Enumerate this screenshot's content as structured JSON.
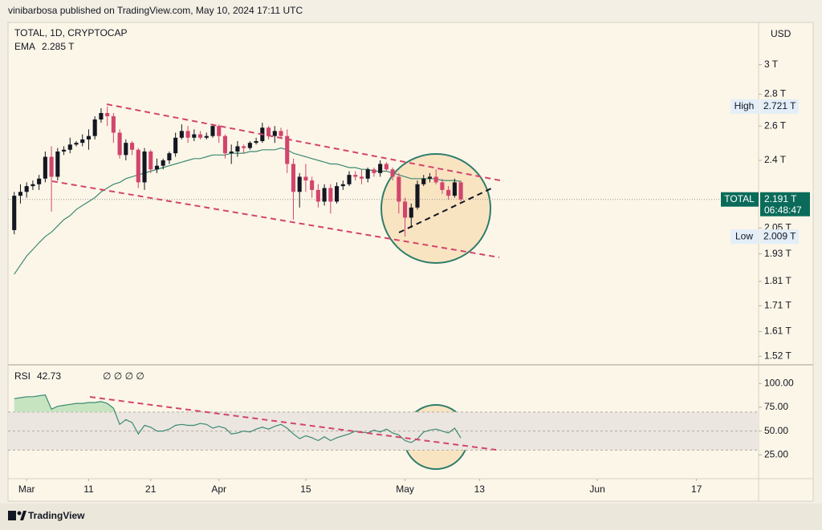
{
  "page": {
    "publisher_line": "vinibarbosa published on TradingView.com, May 10, 2024 17:11 UTC",
    "footer_brand": "TradingView"
  },
  "chart_data": [
    {
      "type": "candlestick",
      "title": "TOTAL, 1D, CRYPTOCAP",
      "currency": "USD",
      "log": true,
      "up_color": "#131722",
      "down_color": "#d2456c",
      "x": [
        "Feb 28",
        "Feb 29",
        "Mar 1",
        "Mar 2",
        "Mar 3",
        "Mar 4",
        "Mar 5",
        "Mar 6",
        "Mar 7",
        "Mar 8",
        "Mar 9",
        "Mar 10",
        "Mar 11",
        "Mar 12",
        "Mar 13",
        "Mar 14",
        "Mar 15",
        "Mar 16",
        "Mar 17",
        "Mar 18",
        "Mar 19",
        "Mar 20",
        "Mar 21",
        "Mar 22",
        "Mar 23",
        "Mar 24",
        "Mar 25",
        "Mar 26",
        "Mar 27",
        "Mar 28",
        "Mar 29",
        "Mar 30",
        "Mar 31",
        "Apr 1",
        "Apr 2",
        "Apr 3",
        "Apr 4",
        "Apr 5",
        "Apr 6",
        "Apr 7",
        "Apr 8",
        "Apr 9",
        "Apr 10",
        "Apr 11",
        "Apr 12",
        "Apr 13",
        "Apr 14",
        "Apr 15",
        "Apr 16",
        "Apr 17",
        "Apr 18",
        "Apr 19",
        "Apr 20",
        "Apr 21",
        "Apr 22",
        "Apr 23",
        "Apr 24",
        "Apr 25",
        "Apr 26",
        "Apr 27",
        "Apr 28",
        "Apr 29",
        "Apr 30",
        "May 1",
        "May 2",
        "May 3",
        "May 4",
        "May 5",
        "May 6",
        "May 7",
        "May 8",
        "May 9",
        "May 10"
      ],
      "open": [
        2.04,
        2.21,
        2.23,
        2.26,
        2.27,
        2.3,
        2.42,
        2.31,
        2.45,
        2.46,
        2.49,
        2.5,
        2.52,
        2.54,
        2.64,
        2.68,
        2.66,
        2.56,
        2.43,
        2.5,
        2.46,
        2.28,
        2.45,
        2.35,
        2.37,
        2.4,
        2.44,
        2.53,
        2.57,
        2.53,
        2.55,
        2.53,
        2.54,
        2.6,
        2.54,
        2.44,
        2.45,
        2.48,
        2.47,
        2.5,
        2.51,
        2.59,
        2.54,
        2.57,
        2.54,
        2.38,
        2.23,
        2.31,
        2.29,
        2.24,
        2.18,
        2.25,
        2.18,
        2.26,
        2.27,
        2.32,
        2.31,
        2.3,
        2.35,
        2.33,
        2.38,
        2.35,
        2.31,
        2.18,
        2.1,
        2.15,
        2.27,
        2.3,
        2.31,
        2.28,
        2.24,
        2.21,
        2.28
      ],
      "high": [
        2.23,
        2.27,
        2.28,
        2.29,
        2.32,
        2.45,
        2.48,
        2.47,
        2.48,
        2.53,
        2.51,
        2.55,
        2.58,
        2.66,
        2.71,
        2.721,
        2.68,
        2.58,
        2.52,
        2.51,
        2.47,
        2.47,
        2.46,
        2.41,
        2.41,
        2.45,
        2.56,
        2.61,
        2.6,
        2.58,
        2.57,
        2.56,
        2.61,
        2.61,
        2.55,
        2.49,
        2.51,
        2.49,
        2.51,
        2.53,
        2.62,
        2.6,
        2.6,
        2.59,
        2.58,
        2.41,
        2.33,
        2.38,
        2.31,
        2.27,
        2.27,
        2.27,
        2.28,
        2.29,
        2.34,
        2.34,
        2.35,
        2.36,
        2.36,
        2.4,
        2.39,
        2.36,
        2.33,
        2.2,
        2.17,
        2.29,
        2.32,
        2.33,
        2.35,
        2.3,
        2.26,
        2.3,
        2.29
      ],
      "low": [
        2.02,
        2.17,
        2.2,
        2.24,
        2.24,
        2.28,
        2.13,
        2.29,
        2.43,
        2.44,
        2.48,
        2.48,
        2.46,
        2.52,
        2.62,
        2.6,
        2.5,
        2.41,
        2.4,
        2.43,
        2.25,
        2.24,
        2.33,
        2.33,
        2.35,
        2.38,
        2.42,
        2.52,
        2.5,
        2.51,
        2.52,
        2.52,
        2.53,
        2.5,
        2.41,
        2.38,
        2.42,
        2.44,
        2.46,
        2.49,
        2.5,
        2.52,
        2.5,
        2.53,
        2.33,
        2.09,
        2.15,
        2.23,
        2.2,
        2.15,
        2.16,
        2.12,
        2.17,
        2.24,
        2.26,
        2.29,
        2.27,
        2.28,
        2.31,
        2.31,
        2.34,
        2.29,
        2.12,
        2.009,
        2.05,
        2.14,
        2.26,
        2.28,
        2.27,
        2.22,
        2.19,
        2.2,
        2.18
      ],
      "close": [
        2.21,
        2.23,
        2.26,
        2.27,
        2.3,
        2.42,
        2.31,
        2.45,
        2.46,
        2.49,
        2.5,
        2.52,
        2.54,
        2.64,
        2.68,
        2.66,
        2.56,
        2.43,
        2.5,
        2.46,
        2.28,
        2.45,
        2.35,
        2.37,
        2.4,
        2.44,
        2.53,
        2.57,
        2.53,
        2.55,
        2.53,
        2.54,
        2.6,
        2.54,
        2.44,
        2.45,
        2.48,
        2.47,
        2.5,
        2.51,
        2.59,
        2.54,
        2.57,
        2.54,
        2.38,
        2.23,
        2.31,
        2.29,
        2.24,
        2.18,
        2.25,
        2.18,
        2.26,
        2.27,
        2.32,
        2.31,
        2.3,
        2.35,
        2.33,
        2.38,
        2.35,
        2.31,
        2.18,
        2.1,
        2.15,
        2.27,
        2.3,
        2.31,
        2.28,
        2.24,
        2.21,
        2.28,
        2.191
      ],
      "overlay": {
        "name": "EMA",
        "color": "#3a8a72",
        "value_label": "2.285 T",
        "values": [
          1.84,
          1.88,
          1.92,
          1.95,
          1.98,
          2.01,
          2.03,
          2.06,
          2.09,
          2.11,
          2.14,
          2.16,
          2.18,
          2.2,
          2.23,
          2.25,
          2.27,
          2.28,
          2.3,
          2.31,
          2.32,
          2.33,
          2.34,
          2.35,
          2.36,
          2.37,
          2.38,
          2.39,
          2.4,
          2.41,
          2.41,
          2.42,
          2.43,
          2.43,
          2.43,
          2.44,
          2.44,
          2.44,
          2.45,
          2.45,
          2.46,
          2.46,
          2.46,
          2.47,
          2.46,
          2.44,
          2.43,
          2.42,
          2.41,
          2.4,
          2.39,
          2.38,
          2.38,
          2.37,
          2.36,
          2.36,
          2.35,
          2.35,
          2.34,
          2.34,
          2.34,
          2.33,
          2.32,
          2.31,
          2.3,
          2.3,
          2.3,
          2.3,
          2.3,
          2.29,
          2.29,
          2.29,
          2.285
        ]
      },
      "price_tags": [
        {
          "label": "High",
          "value": 2.721,
          "value_label": "2.721 T"
        },
        {
          "label": "Low",
          "value": 2.009,
          "value_label": "2.009 T"
        },
        {
          "label": "TOTAL",
          "value": 2.191,
          "value_label": "2.191 T",
          "countdown": "06:48:47"
        }
      ],
      "ylim": [
        1.49,
        3.31
      ],
      "yticks": [
        {
          "value": 3,
          "label": "3 T"
        },
        {
          "value": 2.8,
          "label": "2.8 T"
        },
        {
          "value": 2.6,
          "label": "2.6 T"
        },
        {
          "value": 2.4,
          "label": "2.4 T"
        },
        {
          "value": 2.05,
          "label": "2.05 T"
        },
        {
          "value": 1.93,
          "label": "1.93 T"
        },
        {
          "value": 1.81,
          "label": "1.81 T"
        },
        {
          "value": 1.71,
          "label": "1.71 T"
        },
        {
          "value": 1.61,
          "label": "1.61 T"
        },
        {
          "value": 1.52,
          "label": "1.52 T"
        }
      ],
      "xlim": [
        "Feb 27",
        "Jun 27"
      ],
      "xticks": [
        {
          "value": "Mar 1",
          "label": "Mar"
        },
        {
          "value": "Mar 11",
          "label": "11"
        },
        {
          "value": "Mar 21",
          "label": "21"
        },
        {
          "value": "Apr 1",
          "label": "Apr"
        },
        {
          "value": "Apr 15",
          "label": "15"
        },
        {
          "value": "May 1",
          "label": "May"
        },
        {
          "value": "May 13",
          "label": "13"
        },
        {
          "value": "Jun 1",
          "label": "Jun"
        },
        {
          "value": "Jun 17",
          "label": "17"
        }
      ]
    },
    {
      "type": "line",
      "title": "RSI",
      "flags": "∅ ∅ ∅ ∅",
      "color": "#3a8a72",
      "band_color": "#ece6e1",
      "values": [
        84,
        85,
        86,
        86,
        87,
        88,
        73,
        76,
        77,
        78,
        79,
        79,
        80,
        80,
        81,
        79,
        74,
        57,
        62,
        59,
        47,
        56,
        54,
        50,
        50,
        52,
        56,
        57,
        56,
        56,
        58,
        57,
        53,
        55,
        53,
        47,
        48,
        50,
        49,
        52,
        54,
        52,
        55,
        57,
        53,
        47,
        42,
        45,
        43,
        40,
        44,
        40,
        43,
        45,
        47,
        50,
        49,
        48,
        51,
        49,
        52,
        48,
        46,
        40,
        38,
        42,
        49,
        51,
        52,
        50,
        48,
        53,
        42.73
      ],
      "band": [
        30,
        70
      ],
      "midline": 50,
      "ylim": [
        0,
        117
      ],
      "yticks": [
        {
          "value": 100,
          "label": "100.00"
        },
        {
          "value": 75,
          "label": "75.00"
        },
        {
          "value": 50,
          "label": "50.00"
        },
        {
          "value": 25,
          "label": "25.00"
        }
      ]
    }
  ]
}
